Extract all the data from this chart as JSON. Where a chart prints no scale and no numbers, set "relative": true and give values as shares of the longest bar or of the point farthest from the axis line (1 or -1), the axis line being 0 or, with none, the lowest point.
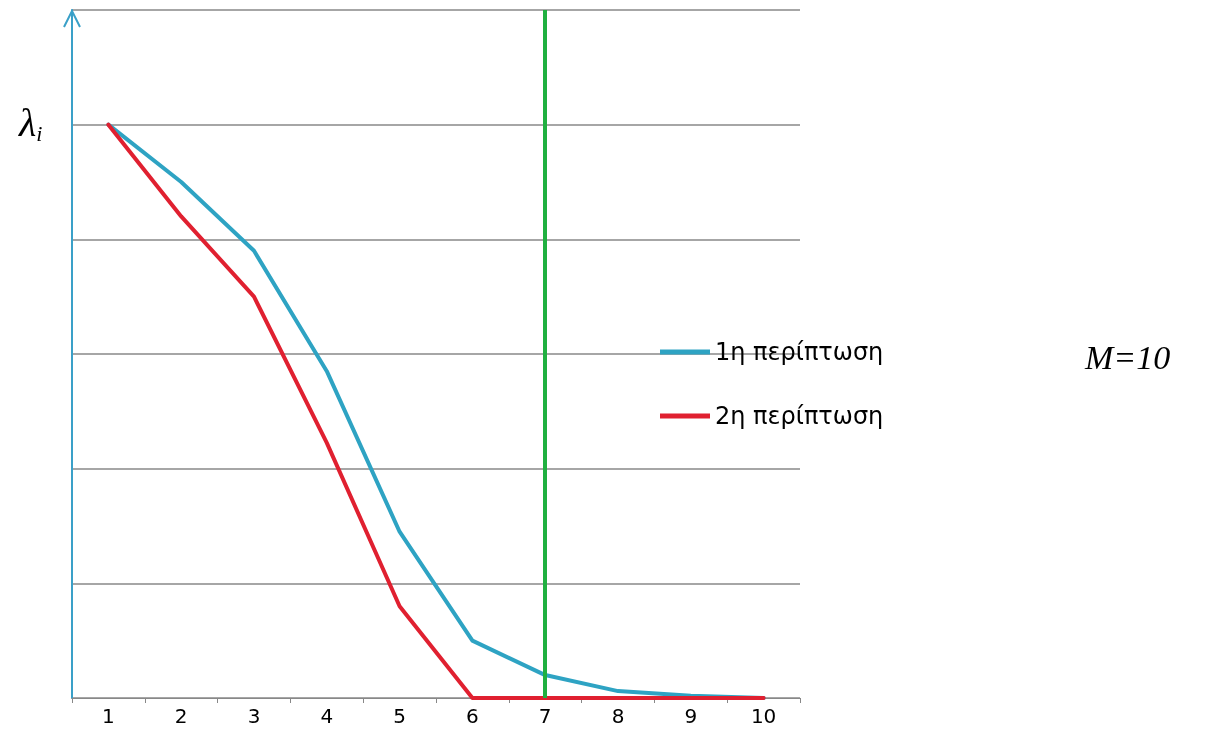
{
  "chart_data": {
    "type": "line",
    "relative": true,
    "ylabel": "λ$_{i}$",
    "categories": [
      "1",
      "2",
      "3",
      "4",
      "5",
      "6",
      "7",
      "8",
      "9",
      "10"
    ],
    "series": [
      {
        "name": "1η περίπτωση",
        "color": "#2ea3c3",
        "values": [
          1,
          0.9,
          0.78,
          0.57,
          0.29,
          0.1,
          0.04,
          0.012,
          0.004,
          0
        ]
      },
      {
        "name": "2η περίπτωση",
        "color": "#e02030",
        "values": [
          1,
          0.84,
          0.7,
          0.445,
          0.16,
          0,
          0,
          0,
          0,
          0
        ]
      }
    ],
    "ref_lines": [
      {
        "axis": "x",
        "value": "7",
        "color": "#20b040"
      }
    ],
    "annotations": [
      "M=10"
    ],
    "grid": "y",
    "legend": "right",
    "marker": "none",
    "line_style": "solid"
  }
}
